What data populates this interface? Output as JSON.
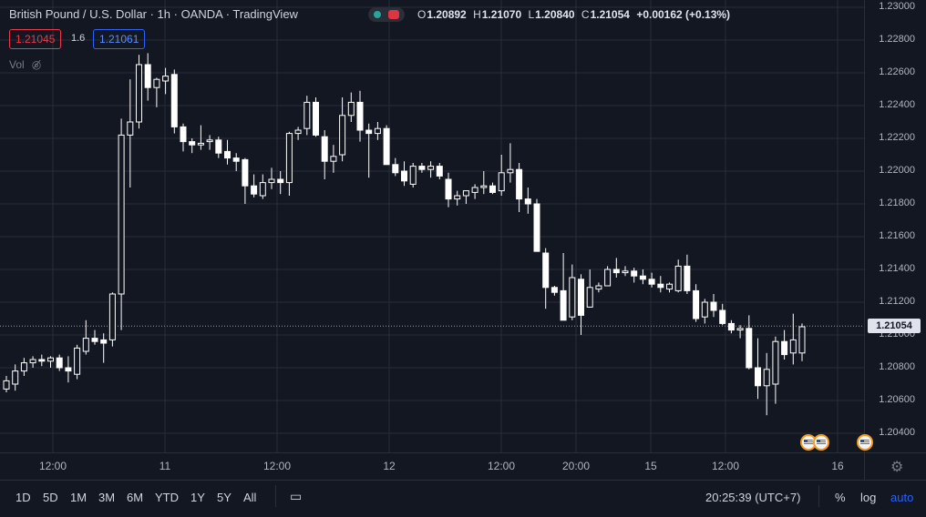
{
  "header": {
    "symbol": "British Pound / U.S. Dollar · 1h · OANDA · TradingView",
    "ohlc": {
      "o_label": "O",
      "o": "1.20892",
      "h_label": "H",
      "h": "1.21070",
      "l_label": "L",
      "l": "1.20840",
      "c_label": "C",
      "c": "1.21054",
      "change": "+0.00162 (+0.13%)"
    },
    "bid": "1.21045",
    "spread": "1.6",
    "ask": "1.21061",
    "vol_label": "Vol",
    "eye_icon": "eye-crossed-icon"
  },
  "colors": {
    "background": "#131722",
    "grid": "#2a2e39",
    "candle": "#ffffff",
    "ask": "#2962ff",
    "bid": "#f23645"
  },
  "chart_data": {
    "type": "candlestick",
    "ylim": [
      1.203,
      1.23
    ],
    "y_ticks": [
      "1.23000",
      "1.22800",
      "1.22600",
      "1.22400",
      "1.22200",
      "1.22000",
      "1.21800",
      "1.21600",
      "1.21400",
      "1.21200",
      "1.21000",
      "1.20800",
      "1.20600",
      "1.20400"
    ],
    "x_ticks": [
      "12:00",
      "11",
      "12:00",
      "12",
      "12:00",
      "20:00",
      "15",
      "12:00",
      "16"
    ],
    "last_price": "1.21054",
    "candles": [
      [
        1.2067,
        1.2075,
        1.2065,
        1.2072
      ],
      [
        1.207,
        1.2082,
        1.2066,
        1.2078
      ],
      [
        1.2078,
        1.2086,
        1.2075,
        1.2083
      ],
      [
        1.2083,
        1.2087,
        1.208,
        1.2085
      ],
      [
        1.2085,
        1.2088,
        1.2081,
        1.2084
      ],
      [
        1.2084,
        1.2087,
        1.208,
        1.2086
      ],
      [
        1.2086,
        1.2088,
        1.2078,
        1.208
      ],
      [
        1.208,
        1.2087,
        1.2071,
        1.2078
      ],
      [
        1.2076,
        1.2094,
        1.2073,
        1.2092
      ],
      [
        1.209,
        1.2109,
        1.2088,
        1.2098
      ],
      [
        1.2098,
        1.2103,
        1.2094,
        1.2096
      ],
      [
        1.2097,
        1.2101,
        1.2083,
        1.2095
      ],
      [
        1.2097,
        1.2126,
        1.2093,
        1.2125
      ],
      [
        1.2125,
        1.2232,
        1.2103,
        1.2222
      ],
      [
        1.2222,
        1.2256,
        1.219,
        1.223
      ],
      [
        1.223,
        1.2271,
        1.2226,
        1.2265
      ],
      [
        1.2265,
        1.2272,
        1.2243,
        1.2251
      ],
      [
        1.2251,
        1.2257,
        1.2239,
        1.2256
      ],
      [
        1.2255,
        1.2263,
        1.2247,
        1.2258
      ],
      [
        1.2259,
        1.2262,
        1.2223,
        1.2227
      ],
      [
        1.2227,
        1.2229,
        1.2212,
        1.2218
      ],
      [
        1.2218,
        1.222,
        1.2211,
        1.2216
      ],
      [
        1.2216,
        1.2228,
        1.2213,
        1.2217
      ],
      [
        1.2218,
        1.2222,
        1.2213,
        1.2219
      ],
      [
        1.2219,
        1.2221,
        1.2208,
        1.2211
      ],
      [
        1.2212,
        1.2219,
        1.2204,
        1.2208
      ],
      [
        1.2208,
        1.2211,
        1.22,
        1.2206
      ],
      [
        1.2207,
        1.2208,
        1.218,
        1.2191
      ],
      [
        1.2191,
        1.2198,
        1.2184,
        1.2186
      ],
      [
        1.2185,
        1.2198,
        1.2183,
        1.2193
      ],
      [
        1.2193,
        1.2202,
        1.2189,
        1.2195
      ],
      [
        1.2195,
        1.22,
        1.2186,
        1.2193
      ],
      [
        1.2193,
        1.2224,
        1.2185,
        1.2223
      ],
      [
        1.2223,
        1.2227,
        1.2219,
        1.2225
      ],
      [
        1.2226,
        1.2246,
        1.2222,
        1.2242
      ],
      [
        1.2242,
        1.2245,
        1.2221,
        1.2222
      ],
      [
        1.2221,
        1.2225,
        1.2195,
        1.2206
      ],
      [
        1.2206,
        1.2216,
        1.2199,
        1.2209
      ],
      [
        1.221,
        1.2245,
        1.2206,
        1.2234
      ],
      [
        1.2234,
        1.2248,
        1.223,
        1.2242
      ],
      [
        1.2242,
        1.2249,
        1.2218,
        1.2225
      ],
      [
        1.2225,
        1.2229,
        1.2196,
        1.2223
      ],
      [
        1.2223,
        1.223,
        1.2219,
        1.2226
      ],
      [
        1.2226,
        1.2228,
        1.2204,
        1.2204
      ],
      [
        1.2204,
        1.2208,
        1.2197,
        1.2199
      ],
      [
        1.22,
        1.2206,
        1.2191,
        1.2194
      ],
      [
        1.2192,
        1.2205,
        1.219,
        1.2203
      ],
      [
        1.2203,
        1.2205,
        1.2199,
        1.2201
      ],
      [
        1.2201,
        1.2206,
        1.2196,
        1.2203
      ],
      [
        1.2203,
        1.2205,
        1.2195,
        1.2197
      ],
      [
        1.2195,
        1.2199,
        1.2178,
        1.2183
      ],
      [
        1.2183,
        1.2188,
        1.2179,
        1.2185
      ],
      [
        1.2185,
        1.2188,
        1.218,
        1.2188
      ],
      [
        1.2187,
        1.2192,
        1.2183,
        1.219
      ],
      [
        1.219,
        1.22,
        1.2186,
        1.2191
      ],
      [
        1.2191,
        1.2193,
        1.2186,
        1.2187
      ],
      [
        1.2188,
        1.221,
        1.2185,
        1.2199
      ],
      [
        1.2199,
        1.2217,
        1.2193,
        1.2201
      ],
      [
        1.2201,
        1.2205,
        1.2175,
        1.2183
      ],
      [
        1.2183,
        1.219,
        1.2174,
        1.218
      ],
      [
        1.218,
        1.2183,
        1.2151,
        1.2151
      ],
      [
        1.215,
        1.2153,
        1.2116,
        1.2129
      ],
      [
        1.2129,
        1.213,
        1.2124,
        1.2126
      ],
      [
        1.2127,
        1.215,
        1.2109,
        1.2109
      ],
      [
        1.2111,
        1.2143,
        1.2109,
        1.2135
      ],
      [
        1.2134,
        1.2137,
        1.21,
        1.2112
      ],
      [
        1.2117,
        1.214,
        1.2117,
        1.2129
      ],
      [
        1.2128,
        1.2132,
        1.2126,
        1.213
      ],
      [
        1.213,
        1.2142,
        1.213,
        1.214
      ],
      [
        1.214,
        1.2147,
        1.2135,
        1.2138
      ],
      [
        1.2138,
        1.2142,
        1.2136,
        1.2139
      ],
      [
        1.2139,
        1.2141,
        1.2132,
        1.2136
      ],
      [
        1.2136,
        1.214,
        1.2131,
        1.2134
      ],
      [
        1.2134,
        1.2138,
        1.2129,
        1.2131
      ],
      [
        1.2131,
        1.2136,
        1.2126,
        1.2129
      ],
      [
        1.2128,
        1.2132,
        1.2126,
        1.2131
      ],
      [
        1.2127,
        1.2146,
        1.2126,
        1.2142
      ],
      [
        1.2142,
        1.2149,
        1.2125,
        1.2127
      ],
      [
        1.2127,
        1.2131,
        1.2108,
        1.211
      ],
      [
        1.2111,
        1.2122,
        1.2107,
        1.212
      ],
      [
        1.212,
        1.2125,
        1.2111,
        1.2115
      ],
      [
        1.2115,
        1.2119,
        1.2106,
        1.2107
      ],
      [
        1.2107,
        1.2109,
        1.2101,
        1.2103
      ],
      [
        1.2103,
        1.2106,
        1.2098,
        1.2104
      ],
      [
        1.2104,
        1.2112,
        1.2079,
        1.208
      ],
      [
        1.208,
        1.2098,
        1.2061,
        1.2069
      ],
      [
        1.2069,
        1.2089,
        1.2051,
        1.2079
      ],
      [
        1.207,
        1.2099,
        1.2058,
        1.2096
      ],
      [
        1.2096,
        1.2103,
        1.2085,
        1.2088
      ],
      [
        1.2089,
        1.2113,
        1.2082,
        1.2097
      ],
      [
        1.2089,
        1.2107,
        1.2084,
        1.2105
      ]
    ]
  },
  "bottom": {
    "ranges": [
      "1D",
      "5D",
      "1M",
      "3M",
      "6M",
      "YTD",
      "1Y",
      "5Y",
      "All"
    ],
    "calendar_icon": "calendar-range-icon",
    "time": "20:25:39 (UTC+7)",
    "percent": "%",
    "log": "log",
    "auto": "auto",
    "gear_icon": "gear-icon"
  }
}
